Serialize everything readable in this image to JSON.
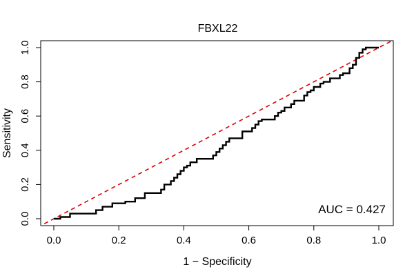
{
  "chart_data": {
    "type": "line",
    "title": "FBXL22",
    "xlabel": "1 − Specificity",
    "ylabel": "Sensitivity",
    "xlim": [
      0,
      1
    ],
    "ylim": [
      0,
      1
    ],
    "x_ticks": [
      "0.0",
      "0.2",
      "0.4",
      "0.6",
      "0.8",
      "1.0"
    ],
    "y_ticks": [
      "0.0",
      "0.2",
      "0.4",
      "0.6",
      "0.8",
      "1.0"
    ],
    "annotation": "AUC = 0.427",
    "grid": false,
    "colors": {
      "roc": "#000000",
      "reference": "#e00000"
    },
    "series": [
      {
        "values": [
          [
            0.0,
            0.0
          ],
          [
            0.02,
            0.0
          ],
          [
            0.02,
            0.01
          ],
          [
            0.05,
            0.01
          ],
          [
            0.05,
            0.03
          ],
          [
            0.13,
            0.03
          ],
          [
            0.13,
            0.05
          ],
          [
            0.15,
            0.05
          ],
          [
            0.15,
            0.07
          ],
          [
            0.18,
            0.07
          ],
          [
            0.18,
            0.09
          ],
          [
            0.22,
            0.09
          ],
          [
            0.22,
            0.1
          ],
          [
            0.25,
            0.1
          ],
          [
            0.25,
            0.12
          ],
          [
            0.28,
            0.12
          ],
          [
            0.28,
            0.15
          ],
          [
            0.33,
            0.15
          ],
          [
            0.33,
            0.17
          ],
          [
            0.34,
            0.17
          ],
          [
            0.34,
            0.2
          ],
          [
            0.36,
            0.2
          ],
          [
            0.36,
            0.22
          ],
          [
            0.37,
            0.22
          ],
          [
            0.37,
            0.24
          ],
          [
            0.38,
            0.24
          ],
          [
            0.38,
            0.26
          ],
          [
            0.39,
            0.26
          ],
          [
            0.39,
            0.28
          ],
          [
            0.4,
            0.28
          ],
          [
            0.4,
            0.3
          ],
          [
            0.41,
            0.3
          ],
          [
            0.41,
            0.31
          ],
          [
            0.42,
            0.31
          ],
          [
            0.42,
            0.33
          ],
          [
            0.44,
            0.33
          ],
          [
            0.44,
            0.35
          ],
          [
            0.49,
            0.35
          ],
          [
            0.49,
            0.37
          ],
          [
            0.5,
            0.37
          ],
          [
            0.5,
            0.39
          ],
          [
            0.51,
            0.39
          ],
          [
            0.51,
            0.41
          ],
          [
            0.52,
            0.41
          ],
          [
            0.52,
            0.43
          ],
          [
            0.53,
            0.43
          ],
          [
            0.53,
            0.45
          ],
          [
            0.54,
            0.45
          ],
          [
            0.54,
            0.47
          ],
          [
            0.58,
            0.47
          ],
          [
            0.58,
            0.51
          ],
          [
            0.61,
            0.51
          ],
          [
            0.61,
            0.53
          ],
          [
            0.62,
            0.53
          ],
          [
            0.62,
            0.55
          ],
          [
            0.63,
            0.55
          ],
          [
            0.63,
            0.57
          ],
          [
            0.64,
            0.57
          ],
          [
            0.64,
            0.58
          ],
          [
            0.68,
            0.58
          ],
          [
            0.68,
            0.6
          ],
          [
            0.69,
            0.6
          ],
          [
            0.69,
            0.62
          ],
          [
            0.7,
            0.62
          ],
          [
            0.7,
            0.63
          ],
          [
            0.71,
            0.63
          ],
          [
            0.71,
            0.65
          ],
          [
            0.73,
            0.65
          ],
          [
            0.73,
            0.67
          ],
          [
            0.74,
            0.67
          ],
          [
            0.74,
            0.69
          ],
          [
            0.77,
            0.69
          ],
          [
            0.77,
            0.72
          ],
          [
            0.78,
            0.72
          ],
          [
            0.78,
            0.74
          ],
          [
            0.79,
            0.74
          ],
          [
            0.79,
            0.75
          ],
          [
            0.8,
            0.75
          ],
          [
            0.8,
            0.77
          ],
          [
            0.82,
            0.77
          ],
          [
            0.82,
            0.79
          ],
          [
            0.83,
            0.79
          ],
          [
            0.83,
            0.8
          ],
          [
            0.85,
            0.8
          ],
          [
            0.85,
            0.82
          ],
          [
            0.88,
            0.82
          ],
          [
            0.88,
            0.84
          ],
          [
            0.89,
            0.84
          ],
          [
            0.89,
            0.85
          ],
          [
            0.91,
            0.85
          ],
          [
            0.91,
            0.88
          ],
          [
            0.92,
            0.88
          ],
          [
            0.92,
            0.9
          ],
          [
            0.93,
            0.9
          ],
          [
            0.93,
            0.94
          ],
          [
            0.94,
            0.94
          ],
          [
            0.94,
            0.97
          ],
          [
            0.95,
            0.97
          ],
          [
            0.95,
            0.99
          ],
          [
            0.96,
            0.99
          ],
          [
            0.96,
            1.0
          ],
          [
            1.0,
            1.0
          ]
        ]
      },
      {
        "values": [
          [
            0,
            0
          ],
          [
            1,
            1
          ]
        ]
      }
    ]
  }
}
